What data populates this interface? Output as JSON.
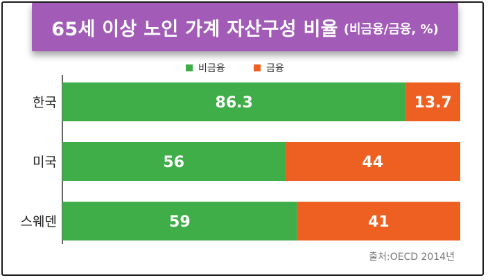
{
  "title": {
    "main": "65세 이상 노인 가계 자산구성 비율",
    "sub": "(비금융/금융, %)"
  },
  "source": "출처:OECD 2014년",
  "colors": {
    "non_financial": "#3fae49",
    "financial": "#ee6022",
    "title_bg": "#a25cb8"
  },
  "chart_data": {
    "type": "bar",
    "orientation": "horizontal",
    "stacked": true,
    "categories": [
      "한국",
      "미국",
      "스웨덴"
    ],
    "series": [
      {
        "name": "비금융",
        "values": [
          86.3,
          56,
          59
        ]
      },
      {
        "name": "금융",
        "values": [
          13.7,
          44,
          41
        ]
      }
    ],
    "xlim": [
      0,
      100
    ],
    "legend_position": "top-center",
    "grid": false
  }
}
